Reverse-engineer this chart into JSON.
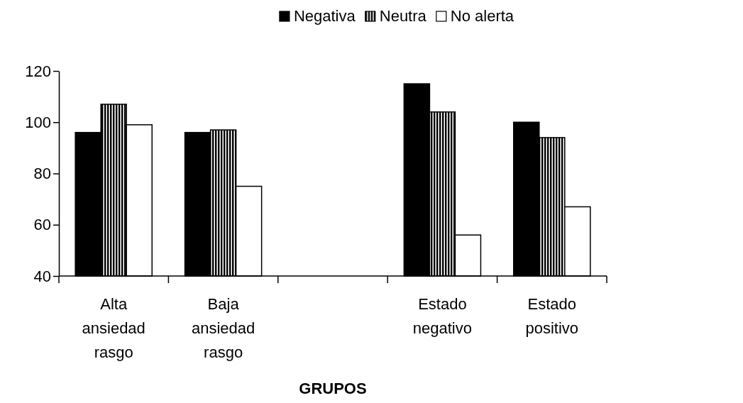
{
  "chart_data": {
    "type": "bar",
    "xlabel": "GRUPOS",
    "categories": [
      "Alta ansiedad rasgo",
      "Baja ansiedad rasgo",
      null,
      "Estado negativo",
      "Estado positivo"
    ],
    "series": [
      {
        "name": "Negativa",
        "color": "#000000",
        "values": [
          96,
          96,
          null,
          115,
          100
        ]
      },
      {
        "name": "Neutra",
        "color": "#000000",
        "values": [
          107,
          97,
          null,
          104,
          94
        ]
      },
      {
        "name": "No alerta",
        "color": "#ffffff",
        "values": [
          99,
          75,
          null,
          56,
          67
        ]
      }
    ],
    "ylim": [
      40,
      120
    ],
    "yticks": [
      40,
      60,
      80,
      100,
      120
    ],
    "grid": false,
    "legend": "top"
  }
}
